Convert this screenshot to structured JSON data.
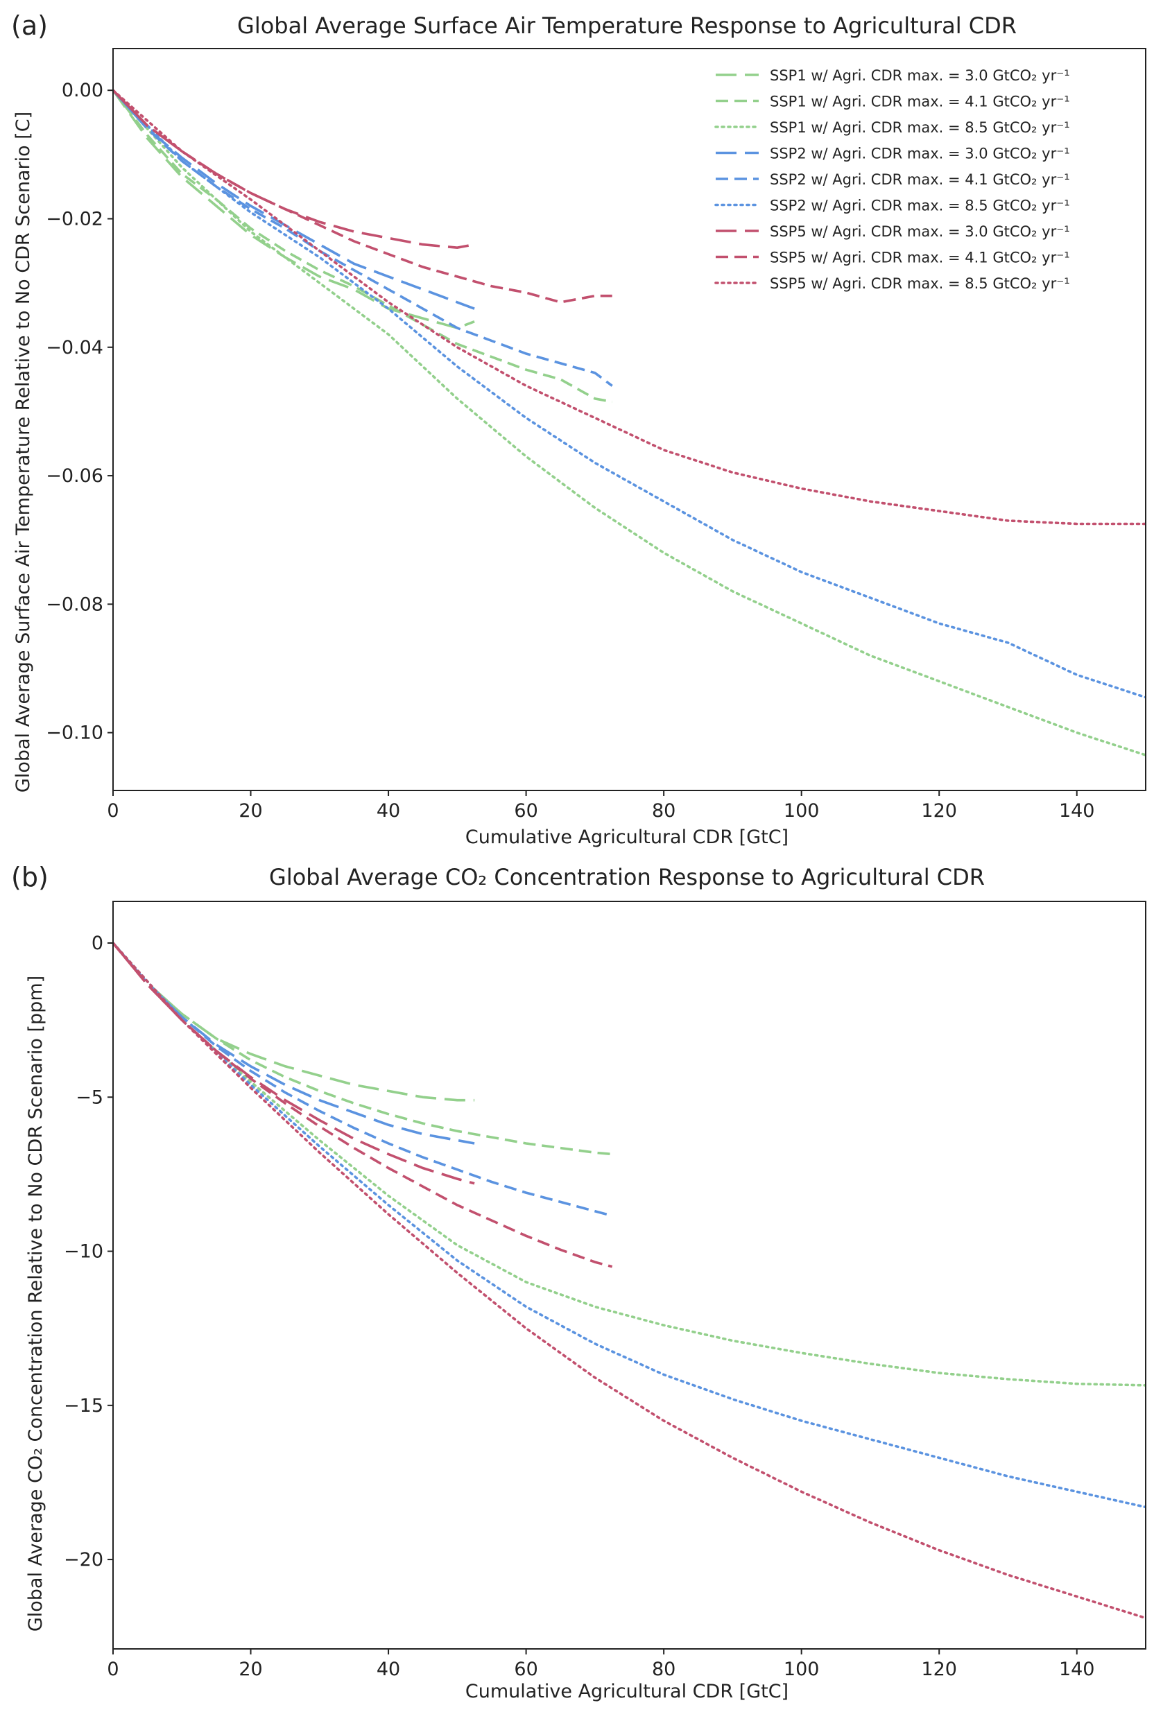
{
  "colors": {
    "SSP1": "#93d08c",
    "SSP2": "#5b93e0",
    "SSP5": "#c2506e",
    "axis": "#222222"
  },
  "chart_data": [
    {
      "panel_label": "(a)",
      "type": "line",
      "title": "Global Average Surface Air Temperature Response to Agricultural CDR",
      "xlabel": "Cumulative Agricultural CDR [GtC]",
      "ylabel": "Global Average Surface Air Temperature Relative to No CDR Scenario [C]",
      "xlim": [
        0,
        150
      ],
      "ylim": [
        -0.109,
        0.0065
      ],
      "xticks": [
        0,
        20,
        40,
        60,
        80,
        100,
        120,
        140
      ],
      "xtick_labels": [
        "0",
        "20",
        "40",
        "60",
        "80",
        "100",
        "120",
        "140"
      ],
      "yticks": [
        0,
        -0.02,
        -0.04,
        -0.06,
        -0.08,
        -0.1
      ],
      "ytick_labels": [
        "0.00",
        "−0.02",
        "−0.04",
        "−0.06",
        "−0.08",
        "−0.10"
      ],
      "legend_position": "top-right",
      "series": [
        {
          "name": "SSP1 w/ Agri. CDR max. = 3.0 GtCO₂ yr⁻¹",
          "ssp": "SSP1",
          "style": "longdash",
          "x": [
            0,
            5,
            10,
            15,
            20,
            25,
            30,
            35,
            40,
            45,
            50,
            52.5
          ],
          "y": [
            0,
            -0.0075,
            -0.0135,
            -0.018,
            -0.0225,
            -0.026,
            -0.029,
            -0.031,
            -0.034,
            -0.0355,
            -0.037,
            -0.036
          ]
        },
        {
          "name": "SSP1 w/ Agri. CDR max. = 4.1 GtCO₂ yr⁻¹",
          "ssp": "SSP1",
          "style": "dash",
          "x": [
            0,
            5,
            10,
            15,
            20,
            25,
            30,
            35,
            40,
            45,
            50,
            55,
            60,
            65,
            70,
            72.5
          ],
          "y": [
            0,
            -0.007,
            -0.013,
            -0.017,
            -0.0215,
            -0.025,
            -0.028,
            -0.0305,
            -0.0335,
            -0.0365,
            -0.0395,
            -0.0415,
            -0.0435,
            -0.045,
            -0.048,
            -0.0485
          ]
        },
        {
          "name": "SSP1 w/ Agri. CDR max. = 8.5 GtCO₂ yr⁻¹",
          "ssp": "SSP1",
          "style": "dot",
          "x": [
            0,
            10,
            20,
            30,
            40,
            50,
            60,
            70,
            80,
            90,
            100,
            110,
            120,
            130,
            140,
            150
          ],
          "y": [
            0,
            -0.012,
            -0.022,
            -0.03,
            -0.038,
            -0.048,
            -0.057,
            -0.065,
            -0.072,
            -0.078,
            -0.083,
            -0.088,
            -0.092,
            -0.096,
            -0.1,
            -0.1035
          ]
        },
        {
          "name": "SSP2 w/ Agri. CDR max. = 3.0 GtCO₂ yr⁻¹",
          "ssp": "SSP2",
          "style": "longdash",
          "x": [
            0,
            5,
            10,
            15,
            20,
            25,
            30,
            35,
            40,
            45,
            50,
            52.5
          ],
          "y": [
            0,
            -0.006,
            -0.0105,
            -0.0145,
            -0.018,
            -0.021,
            -0.024,
            -0.027,
            -0.029,
            -0.031,
            -0.033,
            -0.034
          ]
        },
        {
          "name": "SSP2 w/ Agri. CDR max. = 4.1 GtCO₂ yr⁻¹",
          "ssp": "SSP2",
          "style": "dash",
          "x": [
            0,
            5,
            10,
            15,
            20,
            25,
            30,
            35,
            40,
            45,
            50,
            55,
            60,
            65,
            70,
            72.5
          ],
          "y": [
            0,
            -0.006,
            -0.011,
            -0.015,
            -0.0185,
            -0.0215,
            -0.025,
            -0.028,
            -0.031,
            -0.034,
            -0.037,
            -0.039,
            -0.041,
            -0.0425,
            -0.044,
            -0.046
          ]
        },
        {
          "name": "SSP2 w/ Agri. CDR max. = 8.5 GtCO₂ yr⁻¹",
          "ssp": "SSP2",
          "style": "dot",
          "x": [
            0,
            10,
            20,
            30,
            40,
            50,
            60,
            70,
            80,
            90,
            100,
            110,
            120,
            130,
            140,
            150
          ],
          "y": [
            0,
            -0.011,
            -0.019,
            -0.026,
            -0.034,
            -0.043,
            -0.051,
            -0.058,
            -0.064,
            -0.07,
            -0.075,
            -0.079,
            -0.083,
            -0.086,
            -0.091,
            -0.0945
          ]
        },
        {
          "name": "SSP5 w/ Agri. CDR max. = 3.0 GtCO₂ yr⁻¹",
          "ssp": "SSP5",
          "style": "longdash",
          "x": [
            0,
            5,
            10,
            15,
            20,
            25,
            30,
            35,
            40,
            45,
            50,
            52.5
          ],
          "y": [
            0,
            -0.0055,
            -0.0095,
            -0.013,
            -0.016,
            -0.0185,
            -0.0205,
            -0.022,
            -0.023,
            -0.024,
            -0.0245,
            -0.024
          ]
        },
        {
          "name": "SSP5 w/ Agri. CDR max. = 4.1 GtCO₂ yr⁻¹",
          "ssp": "SSP5",
          "style": "dash",
          "x": [
            0,
            5,
            10,
            15,
            20,
            25,
            30,
            35,
            40,
            45,
            50,
            55,
            60,
            65,
            70,
            72.5
          ],
          "y": [
            0,
            -0.0055,
            -0.0095,
            -0.013,
            -0.016,
            -0.0185,
            -0.021,
            -0.0235,
            -0.0255,
            -0.0275,
            -0.029,
            -0.0305,
            -0.0315,
            -0.033,
            -0.032,
            -0.032
          ]
        },
        {
          "name": "SSP5 w/ Agri. CDR max. = 8.5 GtCO₂ yr⁻¹",
          "ssp": "SSP5",
          "style": "dot",
          "x": [
            0,
            10,
            20,
            30,
            40,
            50,
            60,
            70,
            80,
            90,
            100,
            110,
            120,
            130,
            140,
            150
          ],
          "y": [
            0,
            -0.0095,
            -0.017,
            -0.025,
            -0.033,
            -0.04,
            -0.046,
            -0.051,
            -0.056,
            -0.0595,
            -0.062,
            -0.064,
            -0.0655,
            -0.067,
            -0.0675,
            -0.0675
          ]
        }
      ]
    },
    {
      "panel_label": "(b)",
      "type": "line",
      "title": "Global Average CO₂ Concentration Response to Agricultural CDR",
      "xlabel": "Cumulative Agricultural CDR [GtC]",
      "ylabel": "Global Average CO₂ Concentration Relative to No CDR Scenario [ppm]",
      "xlim": [
        0,
        150
      ],
      "ylim": [
        -22.9,
        1.35
      ],
      "xticks": [
        0,
        20,
        40,
        60,
        80,
        100,
        120,
        140
      ],
      "xtick_labels": [
        "0",
        "20",
        "40",
        "60",
        "80",
        "100",
        "120",
        "140"
      ],
      "yticks": [
        0,
        -5,
        -10,
        -15,
        -20
      ],
      "ytick_labels": [
        "0",
        "−5",
        "−10",
        "−15",
        "−20"
      ],
      "series": [
        {
          "name": "SSP1 w/ Agri. CDR max. = 3.0 GtCO₂ yr⁻¹",
          "ssp": "SSP1",
          "style": "longdash",
          "x": [
            0,
            5,
            10,
            15,
            20,
            25,
            30,
            35,
            40,
            45,
            50,
            52.5
          ],
          "y": [
            0,
            -1.3,
            -2.3,
            -3.1,
            -3.6,
            -4.0,
            -4.3,
            -4.6,
            -4.8,
            -5.0,
            -5.1,
            -5.1
          ]
        },
        {
          "name": "SSP1 w/ Agri. CDR max. = 4.1 GtCO₂ yr⁻¹",
          "ssp": "SSP1",
          "style": "dash",
          "x": [
            0,
            5,
            10,
            15,
            20,
            25,
            30,
            35,
            40,
            45,
            50,
            55,
            60,
            65,
            70,
            72.5
          ],
          "y": [
            0,
            -1.3,
            -2.3,
            -3.1,
            -3.8,
            -4.35,
            -4.8,
            -5.2,
            -5.55,
            -5.85,
            -6.1,
            -6.3,
            -6.5,
            -6.65,
            -6.8,
            -6.85
          ]
        },
        {
          "name": "SSP1 w/ Agri. CDR max. = 8.5 GtCO₂ yr⁻¹",
          "ssp": "SSP1",
          "style": "dot",
          "x": [
            0,
            10,
            20,
            30,
            40,
            50,
            60,
            70,
            80,
            90,
            100,
            110,
            120,
            130,
            140,
            150
          ],
          "y": [
            0,
            -2.5,
            -4.5,
            -6.4,
            -8.2,
            -9.8,
            -11.0,
            -11.8,
            -12.4,
            -12.9,
            -13.3,
            -13.65,
            -13.95,
            -14.15,
            -14.3,
            -14.35
          ]
        },
        {
          "name": "SSP2 w/ Agri. CDR max. = 3.0 GtCO₂ yr⁻¹",
          "ssp": "SSP2",
          "style": "longdash",
          "x": [
            0,
            5,
            10,
            15,
            20,
            25,
            30,
            35,
            40,
            45,
            50,
            52.5
          ],
          "y": [
            0,
            -1.3,
            -2.4,
            -3.3,
            -4.0,
            -4.6,
            -5.1,
            -5.5,
            -5.9,
            -6.2,
            -6.4,
            -6.5
          ]
        },
        {
          "name": "SSP2 w/ Agri. CDR max. = 4.1 GtCO₂ yr⁻¹",
          "ssp": "SSP2",
          "style": "dash",
          "x": [
            0,
            5,
            10,
            15,
            20,
            25,
            30,
            35,
            40,
            45,
            50,
            55,
            60,
            65,
            70,
            72.5
          ],
          "y": [
            0,
            -1.3,
            -2.4,
            -3.35,
            -4.15,
            -4.85,
            -5.45,
            -6.0,
            -6.5,
            -6.95,
            -7.35,
            -7.75,
            -8.1,
            -8.4,
            -8.7,
            -8.85
          ]
        },
        {
          "name": "SSP2 w/ Agri. CDR max. = 8.5 GtCO₂ yr⁻¹",
          "ssp": "SSP2",
          "style": "dot",
          "x": [
            0,
            10,
            20,
            30,
            40,
            50,
            60,
            70,
            80,
            90,
            100,
            110,
            120,
            130,
            140,
            150
          ],
          "y": [
            0,
            -2.5,
            -4.6,
            -6.6,
            -8.5,
            -10.3,
            -11.8,
            -13.0,
            -14.0,
            -14.8,
            -15.5,
            -16.1,
            -16.7,
            -17.3,
            -17.8,
            -18.3
          ]
        },
        {
          "name": "SSP5 w/ Agri. CDR max. = 3.0 GtCO₂ yr⁻¹",
          "ssp": "SSP5",
          "style": "longdash",
          "x": [
            0,
            5,
            10,
            15,
            20,
            25,
            30,
            35,
            40,
            45,
            50,
            52.5
          ],
          "y": [
            0,
            -1.35,
            -2.5,
            -3.5,
            -4.35,
            -5.1,
            -5.75,
            -6.35,
            -6.85,
            -7.3,
            -7.65,
            -7.8
          ]
        },
        {
          "name": "SSP5 w/ Agri. CDR max. = 4.1 GtCO₂ yr⁻¹",
          "ssp": "SSP5",
          "style": "dash",
          "x": [
            0,
            5,
            10,
            15,
            20,
            25,
            30,
            35,
            40,
            45,
            50,
            55,
            60,
            65,
            70,
            72.5
          ],
          "y": [
            0,
            -1.35,
            -2.5,
            -3.5,
            -4.4,
            -5.2,
            -5.95,
            -6.65,
            -7.3,
            -7.9,
            -8.5,
            -9.0,
            -9.5,
            -9.95,
            -10.35,
            -10.5
          ]
        },
        {
          "name": "SSP5 w/ Agri. CDR max. = 8.5 GtCO₂ yr⁻¹",
          "ssp": "SSP5",
          "style": "dot",
          "x": [
            0,
            10,
            20,
            30,
            40,
            50,
            60,
            70,
            80,
            90,
            100,
            110,
            120,
            130,
            140,
            150
          ],
          "y": [
            0,
            -2.5,
            -4.7,
            -6.8,
            -8.8,
            -10.7,
            -12.5,
            -14.1,
            -15.5,
            -16.7,
            -17.8,
            -18.8,
            -19.7,
            -20.5,
            -21.2,
            -21.9
          ]
        }
      ]
    }
  ]
}
